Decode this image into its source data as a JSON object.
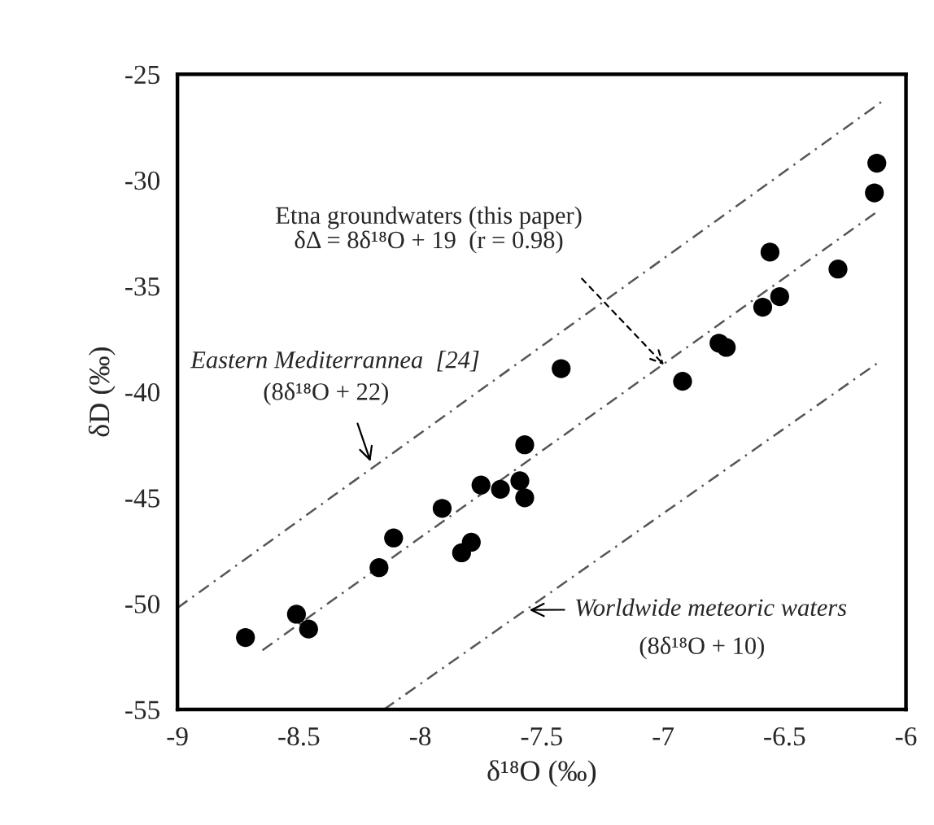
{
  "chart_data": {
    "type": "scatter",
    "xlabel": "δ¹⁸O (‰)",
    "ylabel": "δD (‰)",
    "xlim": [
      -9,
      -6
    ],
    "ylim": [
      -55,
      -25
    ],
    "xticks": [
      -9,
      -8.5,
      -8,
      -7.5,
      -7,
      -6.5,
      -6
    ],
    "yticks": [
      -55,
      -50,
      -45,
      -40,
      -35,
      -30,
      -25
    ],
    "grid": false,
    "series": [
      {
        "marker": "circle",
        "color": "#000000",
        "x": [
          -8.72,
          -8.51,
          -8.46,
          -8.17,
          -8.11,
          -7.91,
          -7.83,
          -7.79,
          -7.75,
          -7.67,
          -7.59,
          -7.57,
          -7.57,
          -7.42,
          -6.92,
          -6.77,
          -6.74,
          -6.59,
          -6.56,
          -6.52,
          -6.28,
          -6.13,
          -6.12
        ],
        "values": [
          -51.6,
          -50.5,
          -51.2,
          -48.3,
          -46.9,
          -45.5,
          -47.6,
          -47.1,
          -44.4,
          -44.6,
          -44.2,
          -45.0,
          -42.5,
          -38.9,
          -39.5,
          -37.7,
          -37.9,
          -36.0,
          -33.4,
          -35.5,
          -34.2,
          -30.6,
          -29.2
        ]
      },
      {
        "type": "line",
        "color": "#555555",
        "line_style": "dashed",
        "x": [
          -8.65,
          -6.12
        ],
        "values": [
          -52.2,
          -31.5
        ]
      },
      {
        "type": "line",
        "color": "#555555",
        "line_style": "dashed",
        "x": [
          -9,
          -6.1
        ],
        "values": [
          -50.2,
          -26.3
        ]
      },
      {
        "type": "line",
        "color": "#555555",
        "line_style": "dashed",
        "x": [
          -8.15,
          -6.1
        ],
        "values": [
          -55,
          -38.5
        ]
      }
    ],
    "annotations": [
      {
        "text": "Etna groundwaters (this paper)\nδΔ = 8δ¹⁸O + 19  (r = 0.98)",
        "x": -6.99,
        "y": -38.8
      },
      "Eastern Mediterrannea  [24]",
      "(8δ¹⁸O + 22)",
      {
        "text": "Worldwide meteoric waters",
        "x": -7.56,
        "y": -50.3
      },
      "(8δ¹⁸O + 10)"
    ]
  }
}
